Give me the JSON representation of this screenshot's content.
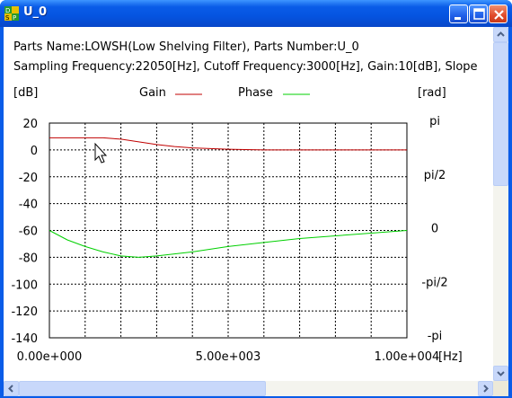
{
  "window": {
    "title": "U_0",
    "icon": "dsp-app-icon",
    "buttons": [
      "minimize",
      "maximize",
      "close"
    ]
  },
  "info": {
    "line1": "Parts Name:LOWSH(Low Shelving Filter), Parts Number:U_0",
    "line2": "Sampling Frequency:22050[Hz], Cutoff Frequency:3000[Hz], Gain:10[dB], Slope"
  },
  "chart_data": {
    "type": "line",
    "left_unit": "[dB]",
    "right_unit": "[rad]",
    "x_unit": "[Hz]",
    "legend": [
      {
        "name": "Gain",
        "color": "#c00000"
      },
      {
        "name": "Phase",
        "color": "#00d000"
      }
    ],
    "x_range": [
      0,
      10000
    ],
    "x_ticks": [
      "0.00e+000",
      "5.00e+003",
      "1.00e+004"
    ],
    "y_left_range": [
      -140,
      20
    ],
    "y_left_ticks": [
      "20",
      "0",
      "-20",
      "-40",
      "-60",
      "-80",
      "-100",
      "-120",
      "-140"
    ],
    "y_right_ticks": [
      "pi",
      "pi/2",
      "0",
      "-pi/2",
      "-pi"
    ],
    "grid": true,
    "series": [
      {
        "name": "Gain",
        "x": [
          0,
          1500,
          2000,
          2500,
          3000,
          3500,
          4000,
          5000,
          6000,
          8000,
          10000
        ],
        "y": [
          9,
          9,
          8,
          6,
          4,
          2.5,
          1.5,
          0.5,
          0,
          0,
          0
        ]
      },
      {
        "name": "Phase",
        "x": [
          0,
          500,
          1000,
          1500,
          2000,
          2500,
          3000,
          4000,
          5000,
          6000,
          7000,
          8000,
          9000,
          10000
        ],
        "y": [
          -60,
          -67,
          -72,
          -76,
          -79,
          -80,
          -79,
          -76,
          -72,
          -69,
          -66,
          -64,
          -62,
          -60
        ]
      }
    ]
  }
}
